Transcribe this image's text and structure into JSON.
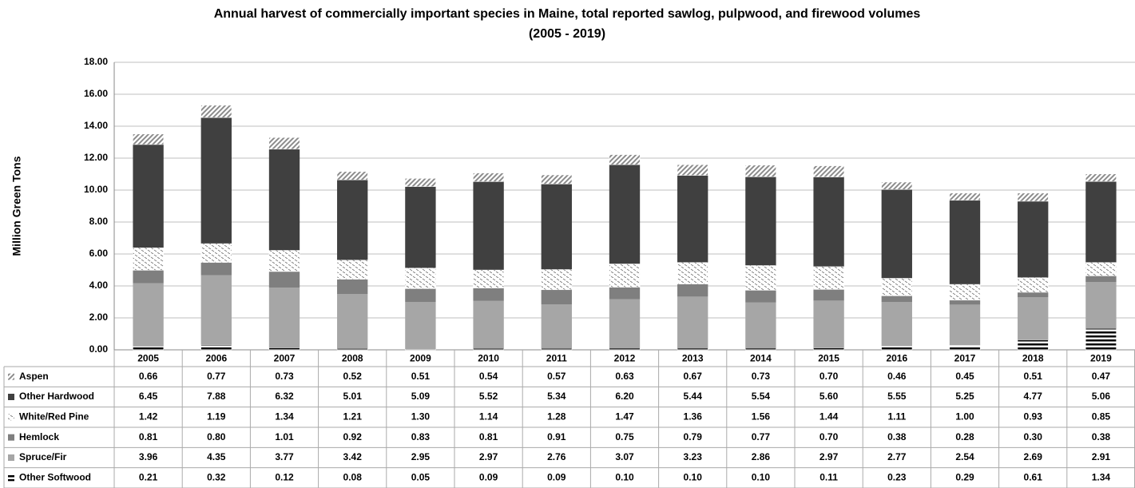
{
  "chart_data": {
    "type": "stacked_bar",
    "title": "Annual harvest of commercially important  species in Maine, total reported sawlog, pulpwood, and firewood volumes",
    "subtitle": "(2005 - 2019)",
    "y_label": "Million Green Tons",
    "categories": [
      "2005",
      "2006",
      "2007",
      "2008",
      "2009",
      "2010",
      "2011",
      "2012",
      "2013",
      "2014",
      "2015",
      "2016",
      "2017",
      "2018",
      "2019"
    ],
    "ylim": [
      0,
      18
    ],
    "yticks": [
      {
        "value": 0,
        "label": "0.00"
      },
      {
        "value": 2,
        "label": "2.00"
      },
      {
        "value": 4,
        "label": "4.00"
      },
      {
        "value": 6,
        "label": "6.00"
      },
      {
        "value": 8,
        "label": "8.00"
      },
      {
        "value": 10,
        "label": "10.00"
      },
      {
        "value": 12,
        "label": "12.00"
      },
      {
        "value": 14,
        "label": "14.00"
      },
      {
        "value": 16,
        "label": "16.00"
      },
      {
        "value": 18,
        "label": "18.00"
      }
    ],
    "grid": true,
    "series": [
      {
        "name": "Aspen",
        "color": "#8c8c8c",
        "values": [
          0.66,
          0.77,
          0.73,
          0.52,
          0.51,
          0.54,
          0.57,
          0.63,
          0.67,
          0.73,
          0.7,
          0.46,
          0.45,
          0.51,
          0.47
        ],
        "value_labels": [
          "0.66",
          "0.77",
          "0.73",
          "0.52",
          "0.51",
          "0.54",
          "0.57",
          "0.63",
          "0.67",
          "0.73",
          "0.70",
          "0.46",
          "0.45",
          "0.51",
          "0.47"
        ]
      },
      {
        "name": "Other Hardwood",
        "color": "#404040",
        "values": [
          6.45,
          7.88,
          6.32,
          5.01,
          5.09,
          5.52,
          5.34,
          6.2,
          5.44,
          5.54,
          5.6,
          5.55,
          5.25,
          4.77,
          5.06
        ],
        "value_labels": [
          "6.45",
          "7.88",
          "6.32",
          "5.01",
          "5.09",
          "5.52",
          "5.34",
          "6.20",
          "5.44",
          "5.54",
          "5.60",
          "5.55",
          "5.25",
          "4.77",
          "5.06"
        ]
      },
      {
        "name": "White/Red Pine",
        "color": "#7f7f7f",
        "values": [
          1.42,
          1.19,
          1.34,
          1.21,
          1.3,
          1.14,
          1.28,
          1.47,
          1.36,
          1.56,
          1.44,
          1.11,
          1.0,
          0.93,
          0.85
        ],
        "value_labels": [
          "1.42",
          "1.19",
          "1.34",
          "1.21",
          "1.30",
          "1.14",
          "1.28",
          "1.47",
          "1.36",
          "1.56",
          "1.44",
          "1.11",
          "1.00",
          "0.93",
          "0.85"
        ]
      },
      {
        "name": "Hemlock",
        "color": "#7f7f7f",
        "values": [
          0.81,
          0.8,
          1.01,
          0.92,
          0.83,
          0.81,
          0.91,
          0.75,
          0.79,
          0.77,
          0.7,
          0.38,
          0.28,
          0.3,
          0.38
        ],
        "value_labels": [
          "0.81",
          "0.80",
          "1.01",
          "0.92",
          "0.83",
          "0.81",
          "0.91",
          "0.75",
          "0.79",
          "0.77",
          "0.70",
          "0.38",
          "0.28",
          "0.30",
          "0.38"
        ]
      },
      {
        "name": "Spruce/Fir",
        "color": "#a6a6a6",
        "values": [
          3.96,
          4.35,
          3.77,
          3.42,
          2.95,
          2.97,
          2.76,
          3.07,
          3.23,
          2.86,
          2.97,
          2.77,
          2.54,
          2.69,
          2.91
        ],
        "value_labels": [
          "3.96",
          "4.35",
          "3.77",
          "3.42",
          "2.95",
          "2.97",
          "2.76",
          "3.07",
          "3.23",
          "2.86",
          "2.97",
          "2.77",
          "2.54",
          "2.69",
          "2.91"
        ]
      },
      {
        "name": "Other Softwood",
        "color": "#000000",
        "values": [
          0.21,
          0.32,
          0.12,
          0.08,
          0.05,
          0.09,
          0.09,
          0.1,
          0.1,
          0.1,
          0.11,
          0.23,
          0.29,
          0.61,
          1.34
        ],
        "value_labels": [
          "0.21",
          "0.32",
          "0.12",
          "0.08",
          "0.05",
          "0.09",
          "0.09",
          "0.10",
          "0.10",
          "0.10",
          "0.11",
          "0.23",
          "0.29",
          "0.61",
          "1.34"
        ]
      }
    ]
  }
}
